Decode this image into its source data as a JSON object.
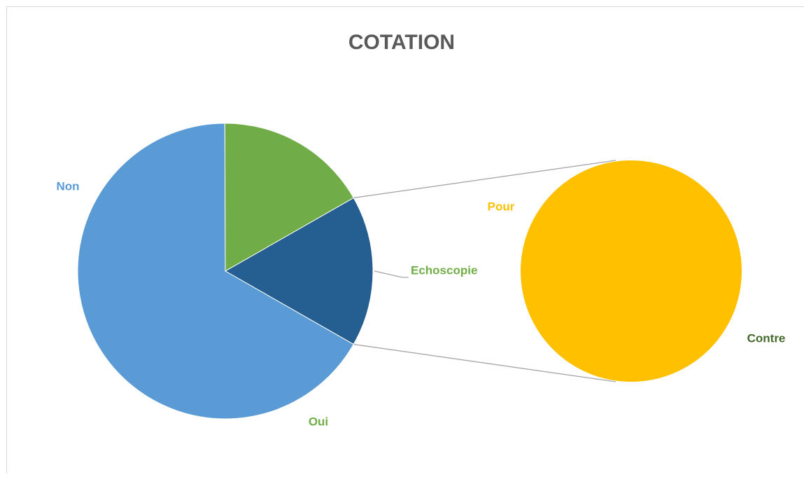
{
  "chart_data": {
    "type": "pie-of-pie",
    "title": "COTATION",
    "categories": [
      "Non",
      "Oui",
      "Pour",
      "Contre"
    ],
    "values": [
      66.7,
      16.8,
      16.5,
      0
    ],
    "colors": [
      "#5b9bd5",
      "#70ad47",
      "#ffc000",
      "#43682b"
    ],
    "secondary": [
      2,
      3
    ],
    "other_label": "Echoscopie",
    "other_color": "#255e91",
    "other_label_color": "#70ad47"
  }
}
